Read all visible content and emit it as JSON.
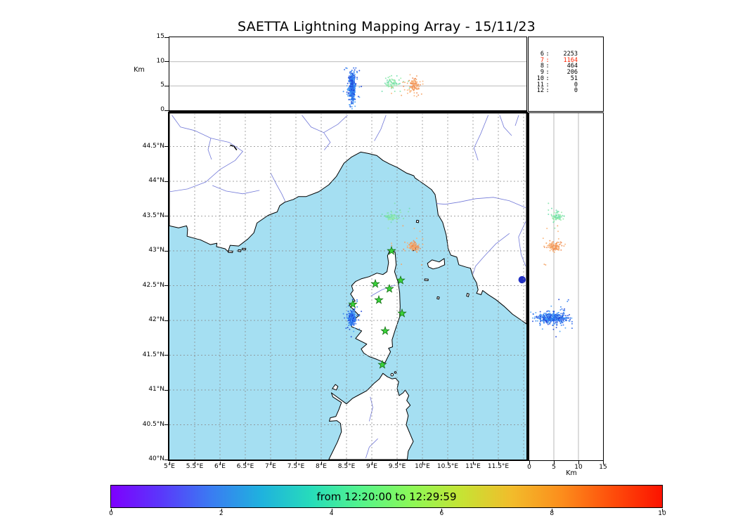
{
  "title": "SAETTA Lightning Mapping Array - 15/11/23",
  "style": {
    "sea": "#a5dff2",
    "land": "#ffffff",
    "coast": "#000000",
    "river": "#7279d8",
    "lake": "#2331c4",
    "grid": "#888888",
    "panel_grid": "#b9b9b9",
    "star_fill": "#3ad13a",
    "star_edge": "#0d660d"
  },
  "axes": {
    "top": {
      "label": "Km",
      "lim": [
        0,
        15
      ],
      "grid": [
        5,
        10
      ],
      "ticks": [
        {
          "v": 0,
          "t": "0"
        },
        {
          "v": 5,
          "t": "5"
        },
        {
          "v": 10,
          "t": "10"
        },
        {
          "v": 15,
          "t": "15"
        }
      ]
    },
    "right": {
      "label": "Km",
      "lim": [
        0,
        15
      ],
      "grid": [
        5,
        10
      ],
      "ticks": [
        {
          "v": 0,
          "t": "0"
        },
        {
          "v": 5,
          "t": "5"
        },
        {
          "v": 10,
          "t": "10"
        },
        {
          "v": 15,
          "t": "15"
        }
      ]
    },
    "map": {
      "lon_lim": [
        5,
        12.06
      ],
      "lat_lim": [
        40,
        44.98
      ],
      "lon_ticks": [
        {
          "v": 5,
          "t": "5°E"
        },
        {
          "v": 5.5,
          "t": "5.5°E"
        },
        {
          "v": 6,
          "t": "6°E"
        },
        {
          "v": 6.5,
          "t": "6.5°E"
        },
        {
          "v": 7,
          "t": "7°E"
        },
        {
          "v": 7.5,
          "t": "7.5°E"
        },
        {
          "v": 8,
          "t": "8°E"
        },
        {
          "v": 8.5,
          "t": "8.5°E"
        },
        {
          "v": 9,
          "t": "9°E"
        },
        {
          "v": 9.5,
          "t": "9.5°E"
        },
        {
          "v": 10,
          "t": "10°E"
        },
        {
          "v": 10.5,
          "t": "10.5°E"
        },
        {
          "v": 11,
          "t": "11°E"
        },
        {
          "v": 11.5,
          "t": "11.5°E"
        }
      ],
      "lat_ticks": [
        {
          "v": 44.5,
          "t": "44.5°N"
        },
        {
          "v": 44,
          "t": "44°N"
        },
        {
          "v": 43.5,
          "t": "43.5°N"
        },
        {
          "v": 43,
          "t": "43°N"
        },
        {
          "v": 42.5,
          "t": "42.5°N"
        },
        {
          "v": 42,
          "t": "42°N"
        },
        {
          "v": 41.5,
          "t": "41.5°N"
        },
        {
          "v": 41,
          "t": "41°N"
        },
        {
          "v": 40.5,
          "t": "40.5°N"
        },
        {
          "v": 40,
          "t": "40°N"
        }
      ]
    }
  },
  "stats": {
    "rows": [
      {
        "stations": "6",
        "count": "2253",
        "color": "#000000"
      },
      {
        "stations": "7",
        "count": "1164",
        "color": "#ff2200"
      },
      {
        "stations": "8",
        "count": "464",
        "color": "#000000"
      },
      {
        "stations": "9",
        "count": "206",
        "color": "#000000"
      },
      {
        "stations": "10",
        "count": "51",
        "color": "#000000"
      },
      {
        "stations": "11",
        "count": "0",
        "color": "#000000"
      },
      {
        "stations": "12",
        "count": "0",
        "color": "#000000"
      }
    ]
  },
  "colorbar": {
    "label": "from 12:20:00 to 12:29:59",
    "lim": [
      0,
      10
    ],
    "ticks": [
      {
        "v": 0,
        "t": "0"
      },
      {
        "v": 2,
        "t": "2"
      },
      {
        "v": 4,
        "t": "4"
      },
      {
        "v": 6,
        "t": "6"
      },
      {
        "v": 8,
        "t": "8"
      },
      {
        "v": 10,
        "t": "10"
      }
    ],
    "gradient": [
      "#7e00fe",
      "#5a38fb",
      "#3a7cf2",
      "#1fb2de",
      "#27dcba",
      "#55f48b",
      "#8cf857",
      "#c6e334",
      "#f2bc2b",
      "#fc8d1c",
      "#fe4e0b",
      "#fc1300"
    ]
  },
  "chart_data": {
    "type": "scatter",
    "title": "SAETTA Lightning Mapping Array - 15/11/23",
    "time_window": {
      "start": "12:20:00",
      "end": "12:29:59"
    },
    "panels": [
      "altitude_km_vs_longitude",
      "map_longitude_latitude",
      "altitude_km_vs_latitude"
    ],
    "sources_by_station_number": [
      [
        "6",
        2253
      ],
      [
        "7",
        1164
      ],
      [
        "8",
        464
      ],
      [
        "9",
        206
      ],
      [
        "10",
        51
      ],
      [
        "11",
        0
      ],
      [
        "12",
        0
      ]
    ],
    "clusters": [
      {
        "id": "cell-blue-early",
        "palette": [
          "#1d43d8",
          "#2a66ea",
          "#2f84f2",
          "#49a2f6"
        ],
        "lon": 8.61,
        "lat": 42.035,
        "alt_km": 4.6,
        "sigma_lon": 0.032,
        "sigma_lat": 0.042,
        "sigma_alt": 1.55,
        "alt_min": 0.3,
        "alt_max": 8.7,
        "n": 430,
        "outliers": 30
      },
      {
        "id": "cell-green-mid",
        "palette": [
          "#69dcaa",
          "#7fe4a8",
          "#95eaa6"
        ],
        "lon": 9.41,
        "lat": 43.49,
        "alt_km": 5.6,
        "sigma_lon": 0.075,
        "sigma_lat": 0.035,
        "sigma_alt": 0.6,
        "alt_min": 3.9,
        "alt_max": 7.7,
        "n": 70,
        "outliers": 9
      },
      {
        "id": "cell-orange-late",
        "palette": [
          "#ee8b50",
          "#f5a263",
          "#fab274"
        ],
        "lon": 9.83,
        "lat": 43.06,
        "alt_km": 5.1,
        "sigma_lon": 0.058,
        "sigma_lat": 0.032,
        "sigma_alt": 0.85,
        "alt_min": 2.5,
        "alt_max": 7.3,
        "n": 110,
        "outliers": 15
      }
    ],
    "stations_lonlat": [
      [
        9.389,
        43.0
      ],
      [
        9.069,
        42.525
      ],
      [
        9.347,
        42.455
      ],
      [
        9.569,
        42.576
      ],
      [
        9.139,
        42.293
      ],
      [
        8.625,
        42.232
      ],
      [
        9.597,
        42.101
      ],
      [
        9.264,
        41.848
      ],
      [
        9.208,
        41.364
      ]
    ]
  }
}
